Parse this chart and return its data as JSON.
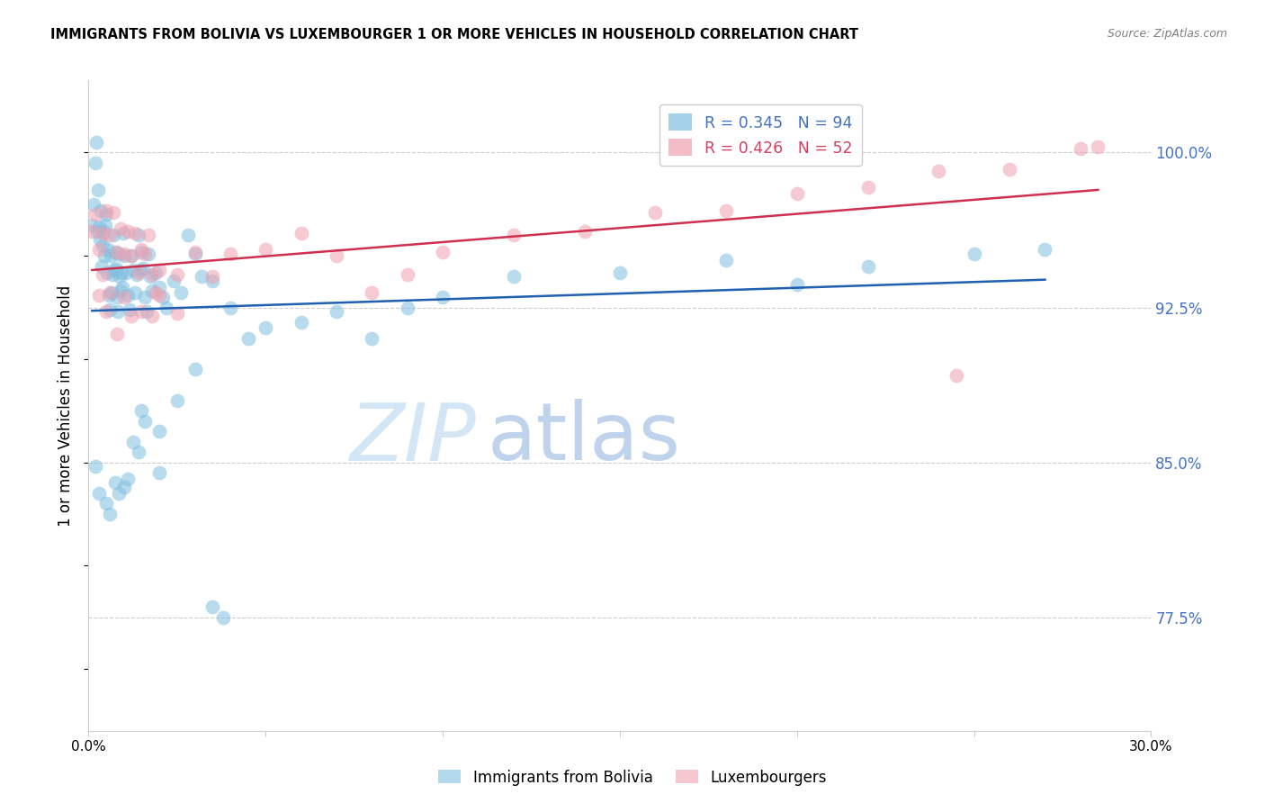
{
  "title": "IMMIGRANTS FROM BOLIVIA VS LUXEMBOURGER 1 OR MORE VEHICLES IN HOUSEHOLD CORRELATION CHART",
  "source": "Source: ZipAtlas.com",
  "ylabel": "1 or more Vehicles in Household",
  "yticks": [
    77.5,
    85.0,
    92.5,
    100.0
  ],
  "ytick_labels": [
    "77.5%",
    "85.0%",
    "92.5%",
    "100.0%"
  ],
  "xticks": [
    0.0,
    5.0,
    10.0,
    15.0,
    20.0,
    25.0,
    30.0
  ],
  "xtick_labels": [
    "0.0%",
    "",
    "",
    "",
    "",
    "",
    "30.0%"
  ],
  "xmin": 0.0,
  "xmax": 30.0,
  "ymin": 72.0,
  "ymax": 103.5,
  "blue_R": "0.345",
  "blue_N": "94",
  "pink_R": "0.426",
  "pink_N": "52",
  "blue_color": "#7fbfdf",
  "pink_color": "#f0a0b0",
  "blue_line_color": "#2060b0",
  "pink_line_color": "#d03050",
  "legend_r_color_blue": "#4472c4",
  "legend_r_color_pink": "#d04060",
  "legend_label_blue": "Immigrants from Bolivia",
  "legend_label_pink": "Luxembourgers",
  "watermark_zip": "ZIP",
  "watermark_atlas": "atlas",
  "blue_x": [
    0.1,
    0.15,
    0.2,
    0.22,
    0.25,
    0.28,
    0.3,
    0.32,
    0.35,
    0.38,
    0.4,
    0.42,
    0.45,
    0.48,
    0.5,
    0.52,
    0.55,
    0.58,
    0.6,
    0.62,
    0.65,
    0.68,
    0.7,
    0.72,
    0.75,
    0.78,
    0.8,
    0.82,
    0.85,
    0.88,
    0.9,
    0.92,
    0.95,
    0.98,
    1.0,
    1.05,
    1.1,
    1.15,
    1.2,
    1.25,
    1.3,
    1.35,
    1.4,
    1.45,
    1.5,
    1.55,
    1.6,
    1.65,
    1.7,
    1.75,
    1.8,
    1.9,
    2.0,
    2.1,
    2.2,
    2.4,
    2.6,
    2.8,
    3.0,
    3.2,
    3.5,
    4.0,
    4.5,
    5.0,
    6.0,
    7.0,
    8.0,
    9.0,
    10.0,
    12.0,
    15.0,
    18.0,
    20.0,
    22.0,
    25.0,
    27.0,
    1.5,
    2.0,
    0.2,
    0.3,
    3.5,
    3.8,
    0.5,
    0.6,
    0.75,
    0.85,
    1.0,
    1.1,
    1.25,
    1.4,
    1.6,
    2.0,
    2.5,
    3.0
  ],
  "blue_y": [
    96.5,
    97.5,
    99.5,
    100.5,
    96.2,
    98.2,
    96.4,
    95.8,
    97.2,
    94.5,
    95.5,
    96.2,
    95.0,
    96.5,
    97.0,
    94.2,
    95.3,
    93.1,
    92.4,
    95.0,
    93.2,
    94.1,
    96.0,
    94.3,
    95.2,
    94.4,
    93.0,
    92.3,
    95.1,
    94.0,
    93.3,
    94.2,
    93.5,
    96.1,
    95.0,
    94.2,
    93.1,
    92.4,
    95.0,
    94.3,
    93.2,
    94.1,
    96.0,
    94.3,
    95.2,
    94.4,
    93.0,
    92.3,
    95.1,
    94.0,
    93.3,
    94.2,
    93.5,
    93.0,
    92.5,
    93.8,
    93.2,
    96.0,
    95.1,
    94.0,
    93.8,
    92.5,
    91.0,
    91.5,
    91.8,
    92.3,
    91.0,
    92.5,
    93.0,
    94.0,
    94.2,
    94.8,
    93.6,
    94.5,
    95.1,
    95.3,
    87.5,
    84.5,
    84.8,
    83.5,
    78.0,
    77.5,
    83.0,
    82.5,
    84.0,
    83.5,
    83.8,
    84.2,
    86.0,
    85.5,
    87.0,
    86.5,
    88.0,
    89.5
  ],
  "pink_x": [
    0.1,
    0.2,
    0.3,
    0.4,
    0.5,
    0.6,
    0.7,
    0.8,
    0.9,
    1.0,
    1.1,
    1.2,
    1.3,
    1.4,
    1.5,
    1.6,
    1.7,
    1.8,
    1.9,
    2.0,
    2.5,
    3.0,
    3.5,
    4.0,
    5.0,
    6.0,
    7.0,
    8.0,
    9.0,
    10.0,
    12.0,
    14.0,
    16.0,
    18.0,
    20.0,
    22.0,
    24.0,
    26.0,
    28.0,
    0.3,
    0.5,
    0.8,
    1.0,
    1.2,
    1.5,
    2.0,
    2.5,
    0.4,
    0.6,
    1.8,
    24.5,
    28.5
  ],
  "pink_y": [
    96.2,
    97.0,
    95.3,
    96.1,
    97.2,
    96.0,
    97.1,
    95.2,
    96.3,
    95.1,
    96.2,
    95.0,
    96.1,
    94.2,
    95.3,
    95.1,
    96.0,
    94.1,
    93.2,
    94.3,
    94.1,
    95.2,
    94.0,
    95.1,
    95.3,
    96.1,
    95.0,
    93.2,
    94.1,
    95.2,
    96.0,
    96.2,
    97.1,
    97.2,
    98.0,
    98.3,
    99.1,
    99.2,
    100.2,
    93.1,
    92.3,
    91.2,
    93.0,
    92.1,
    92.3,
    93.1,
    92.2,
    94.1,
    93.2,
    92.1,
    89.2,
    100.3
  ]
}
